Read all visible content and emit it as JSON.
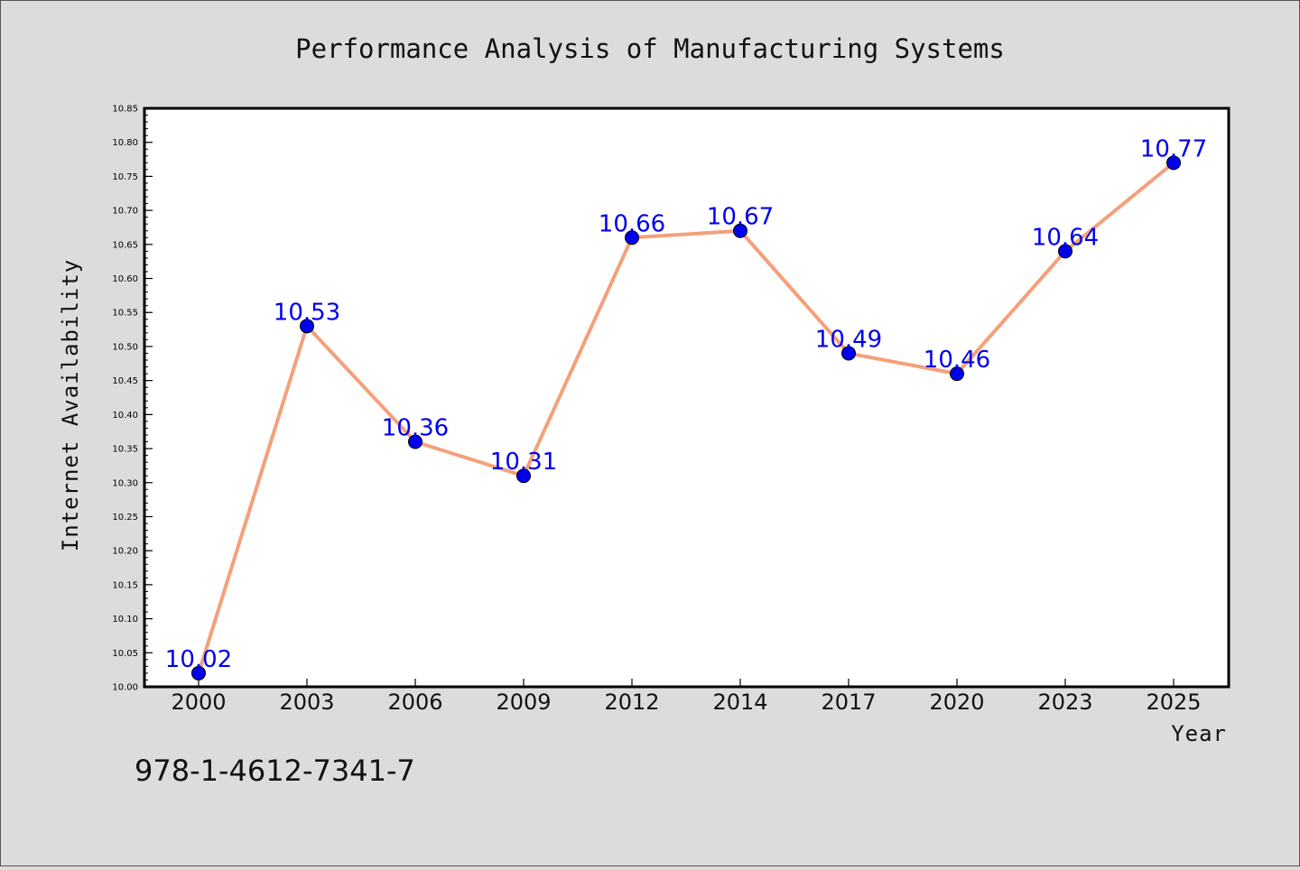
{
  "chart_data": {
    "type": "line",
    "title": "Performance Analysis of Manufacturing Systems",
    "xlabel": "Year",
    "ylabel": "Internet Availability",
    "categories": [
      "2000",
      "2003",
      "2006",
      "2009",
      "2012",
      "2014",
      "2017",
      "2020",
      "2023",
      "2025"
    ],
    "series": [
      {
        "values": [
          10.02,
          10.53,
          10.36,
          10.31,
          10.66,
          10.67,
          10.49,
          10.46,
          10.64,
          10.77
        ]
      }
    ],
    "data_labels": [
      "10.02",
      "10.53",
      "10.36",
      "10.31",
      "10.66",
      "10.67",
      "10.49",
      "10.46",
      "10.64",
      "10.77"
    ],
    "ylim": [
      10.0,
      10.85
    ],
    "y_major_step": 0.05,
    "y_ticks": [
      "10.00",
      "10.05",
      "10.10",
      "10.15",
      "10.20",
      "10.25",
      "10.30",
      "10.35",
      "10.40",
      "10.45",
      "10.50",
      "10.55",
      "10.60",
      "10.65",
      "10.70",
      "10.75",
      "10.80",
      "10.85"
    ],
    "grid": false,
    "line_color": "#f4a07a",
    "marker_color": "#0000ee",
    "label_color": "#0000ee"
  },
  "footer_text": "978-1-4612-7341-7"
}
